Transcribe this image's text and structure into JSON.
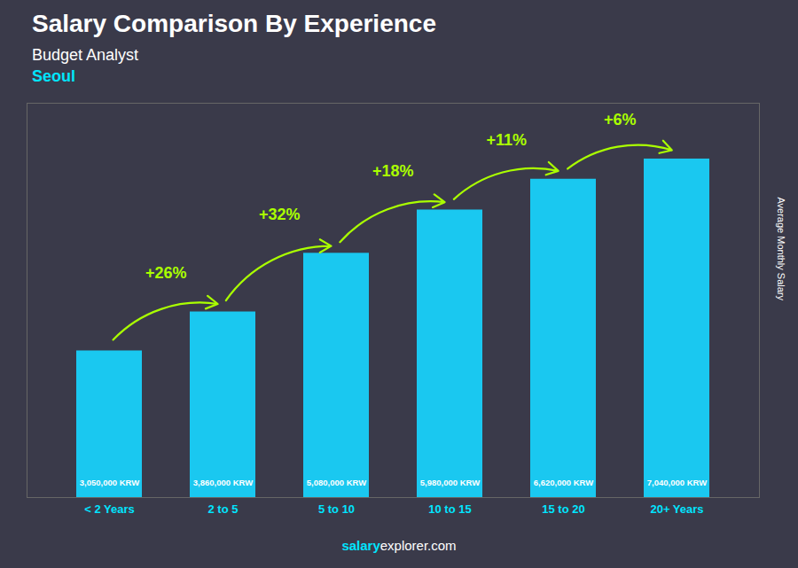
{
  "chart_data": {
    "type": "bar",
    "title": "Salary Comparison By Experience",
    "subtitle": "Budget Analyst",
    "city": "Seoul",
    "ylabel": "Average Monthly Salary",
    "footer": [
      "salary",
      "explorer.com"
    ],
    "categories": [
      "< 2 Years",
      "2 to 5",
      "5 to 10",
      "10 to 15",
      "15 to 20",
      "20+ Years"
    ],
    "values": [
      3050000,
      3860000,
      5080000,
      5980000,
      6620000,
      7040000
    ],
    "value_labels": [
      "3,050,000 KRW",
      "3,860,000 KRW",
      "5,080,000 KRW",
      "5,980,000 KRW",
      "6,620,000 KRW",
      "7,040,000 KRW"
    ],
    "data_labels": true,
    "pct_changes": [
      null,
      "+26%",
      "+32%",
      "+18%",
      "+11%",
      "+6%"
    ],
    "color": "#1ac8f0",
    "ylim": [
      0,
      8200000
    ],
    "tick_labels": "x",
    "grid": false
  }
}
